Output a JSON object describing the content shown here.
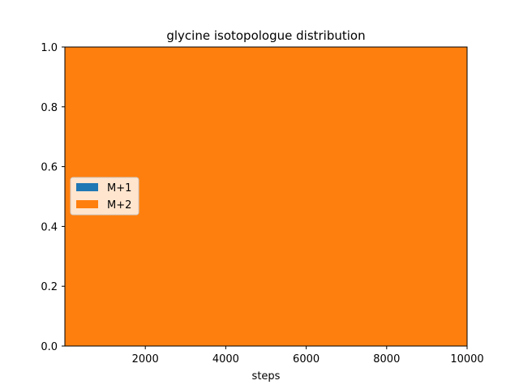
{
  "chart_data": {
    "type": "area",
    "title": "glycine isotopologue distribution",
    "xlabel": "steps",
    "ylabel": "",
    "xlim": [
      0,
      10000
    ],
    "ylim": [
      0,
      1
    ],
    "x_ticks": [
      2000,
      4000,
      6000,
      8000,
      10000
    ],
    "y_ticks": [
      0.0,
      0.2,
      0.4,
      0.6,
      0.8,
      1.0
    ],
    "x_tick_labels": [
      "2000",
      "4000",
      "6000",
      "8000",
      "10000"
    ],
    "y_tick_labels": [
      "0.0",
      "0.2",
      "0.4",
      "0.6",
      "0.8",
      "1.0"
    ],
    "grid": false,
    "stacked": true,
    "legend_position": "center-left",
    "x": [
      0,
      10000
    ],
    "series": [
      {
        "name": "M+1",
        "color": "#1f77b4",
        "values": [
          0.0,
          0.0
        ]
      },
      {
        "name": "M+2",
        "color": "#ff7f0e",
        "values": [
          1.0,
          1.0
        ]
      }
    ]
  }
}
